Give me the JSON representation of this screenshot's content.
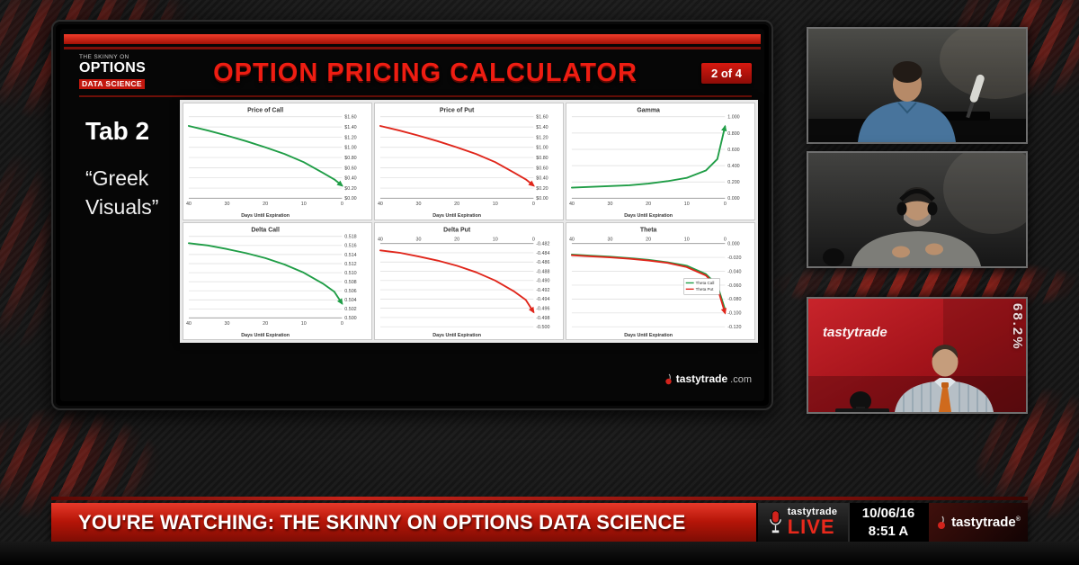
{
  "slide": {
    "logo": {
      "line1": "THE SKINNY ON",
      "line2": "OPTIONS",
      "line3": "DATA SCIENCE"
    },
    "title": "OPTION PRICING CALCULATOR",
    "page_badge": "2 of 4",
    "tab_label": "Tab 2",
    "tab_sublabel": "“Greek\nVisuals”",
    "footer_brand": "tastytrade",
    "footer_brand_suffix": ".com"
  },
  "chart_data": [
    {
      "type": "line",
      "title": "Price of Call",
      "xlabel": "Days Until Expiration",
      "xlim": [
        40,
        0
      ],
      "x_ticks": [
        40,
        30,
        20,
        10,
        0
      ],
      "x_labels_top": false,
      "x": [
        40,
        35,
        30,
        25,
        20,
        15,
        10,
        5,
        2,
        0
      ],
      "series": [
        {
          "name": "Price of Call",
          "color": "#1f9d46",
          "values": [
            1.42,
            1.33,
            1.23,
            1.12,
            1.0,
            0.87,
            0.71,
            0.5,
            0.37,
            0.25
          ]
        }
      ],
      "ylim": [
        0,
        1.6
      ],
      "y_tick_values": [
        1.6,
        1.4,
        1.2,
        1.0,
        0.8,
        0.6,
        0.4,
        0.2,
        0
      ],
      "y_tick_labels": [
        "$1.60",
        "$1.40",
        "$1.20",
        "$1.00",
        "$0.80",
        "$0.60",
        "$0.40",
        "$0.20",
        "$0.00"
      ],
      "arrow": true,
      "grid": true,
      "legend": false
    },
    {
      "type": "line",
      "title": "Price of Put",
      "xlabel": "Days Until Expiration",
      "xlim": [
        40,
        0
      ],
      "x_ticks": [
        40,
        30,
        20,
        10,
        0
      ],
      "x_labels_top": false,
      "x": [
        40,
        35,
        30,
        25,
        20,
        15,
        10,
        5,
        2,
        0
      ],
      "series": [
        {
          "name": "Price of Put",
          "color": "#e0261b",
          "values": [
            1.42,
            1.33,
            1.23,
            1.12,
            1.0,
            0.87,
            0.71,
            0.5,
            0.37,
            0.25
          ]
        }
      ],
      "ylim": [
        0,
        1.6
      ],
      "y_tick_values": [
        1.6,
        1.4,
        1.2,
        1.0,
        0.8,
        0.6,
        0.4,
        0.2,
        0
      ],
      "y_tick_labels": [
        "$1.60",
        "$1.40",
        "$1.20",
        "$1.00",
        "$0.80",
        "$0.60",
        "$0.40",
        "$0.20",
        "$0.00"
      ],
      "arrow": true,
      "grid": true,
      "legend": false
    },
    {
      "type": "line",
      "title": "Gamma",
      "xlabel": "Days Until Expiration",
      "xlim": [
        40,
        0
      ],
      "x_ticks": [
        40,
        30,
        20,
        10,
        0
      ],
      "x_labels_top": false,
      "x": [
        40,
        35,
        30,
        25,
        20,
        15,
        10,
        5,
        2,
        0
      ],
      "series": [
        {
          "name": "Gamma",
          "color": "#1f9d46",
          "values": [
            0.13,
            0.14,
            0.15,
            0.16,
            0.18,
            0.21,
            0.25,
            0.34,
            0.48,
            0.88
          ]
        }
      ],
      "ylim": [
        0,
        1.0
      ],
      "y_tick_values": [
        1.0,
        0.8,
        0.6,
        0.4,
        0.2,
        0
      ],
      "y_tick_labels": [
        "1.000",
        "0.800",
        "0.600",
        "0.400",
        "0.200",
        "0.000"
      ],
      "arrow": true,
      "grid": true,
      "legend": false
    },
    {
      "type": "line",
      "title": "Delta Call",
      "xlabel": "Days Until Expiration",
      "xlim": [
        40,
        0
      ],
      "x_ticks": [
        40,
        30,
        20,
        10,
        0
      ],
      "x_labels_top": false,
      "x": [
        40,
        35,
        30,
        25,
        20,
        15,
        10,
        5,
        2,
        0
      ],
      "series": [
        {
          "name": "Delta Call",
          "color": "#1f9d46",
          "values": [
            0.5165,
            0.516,
            0.5152,
            0.5143,
            0.5132,
            0.5118,
            0.51,
            0.5076,
            0.5058,
            0.5032
          ]
        }
      ],
      "ylim": [
        0.5,
        0.518
      ],
      "y_tick_values": [
        0.518,
        0.516,
        0.514,
        0.512,
        0.51,
        0.508,
        0.506,
        0.504,
        0.502,
        0.5
      ],
      "y_tick_labels": [
        "0.518",
        "0.516",
        "0.514",
        "0.512",
        "0.510",
        "0.508",
        "0.506",
        "0.504",
        "0.502",
        "0.500"
      ],
      "arrow": true,
      "grid": true,
      "legend": false
    },
    {
      "type": "line",
      "title": "Delta Put",
      "xlabel": "Days Until Expiration",
      "xlim": [
        40,
        0
      ],
      "x_ticks": [
        40,
        30,
        20,
        10,
        0
      ],
      "x_labels_top": true,
      "x": [
        40,
        35,
        30,
        25,
        20,
        15,
        10,
        5,
        2,
        0
      ],
      "series": [
        {
          "name": "Delta Put",
          "color": "#e0261b",
          "values": [
            -0.4835,
            -0.484,
            -0.4848,
            -0.4857,
            -0.4868,
            -0.4882,
            -0.49,
            -0.4924,
            -0.4942,
            -0.4968
          ]
        }
      ],
      "ylim": [
        -0.5,
        -0.482
      ],
      "y_tick_values": [
        -0.482,
        -0.484,
        -0.486,
        -0.488,
        -0.49,
        -0.492,
        -0.494,
        -0.496,
        -0.498,
        -0.5
      ],
      "y_tick_labels": [
        "-0.482",
        "-0.484",
        "-0.486",
        "-0.488",
        "-0.490",
        "-0.492",
        "-0.494",
        "-0.496",
        "-0.498",
        "-0.500"
      ],
      "arrow": true,
      "grid": true,
      "legend": false
    },
    {
      "type": "line",
      "title": "Theta",
      "xlabel": "Days Until Expiration",
      "xlim": [
        40,
        0
      ],
      "x_ticks": [
        40,
        30,
        20,
        10,
        0
      ],
      "x_labels_top": true,
      "x": [
        40,
        35,
        30,
        25,
        20,
        15,
        10,
        5,
        2,
        0
      ],
      "series": [
        {
          "name": "Theta Call",
          "color": "#1f9d46",
          "values": [
            -0.016,
            -0.0175,
            -0.019,
            -0.021,
            -0.0235,
            -0.027,
            -0.032,
            -0.044,
            -0.06,
            -0.095
          ]
        },
        {
          "name": "Theta Put",
          "color": "#e0261b",
          "values": [
            -0.017,
            -0.0185,
            -0.02,
            -0.022,
            -0.0245,
            -0.028,
            -0.034,
            -0.046,
            -0.063,
            -0.1
          ]
        }
      ],
      "ylim": [
        -0.12,
        0.0
      ],
      "y_tick_values": [
        0,
        -0.02,
        -0.04,
        -0.06,
        -0.08,
        -0.1,
        -0.12
      ],
      "y_tick_labels": [
        "0.000",
        "-0.020",
        "-0.040",
        "-0.060",
        "-0.080",
        "-0.100",
        "-0.120"
      ],
      "arrow": true,
      "grid": true,
      "legend": true
    }
  ],
  "side_videos": [
    {},
    {},
    {
      "backdrop_text": "tastytrade",
      "overlay_percent": "68.2%"
    }
  ],
  "ticker": {
    "watching_text": "YOU'RE WATCHING: THE SKINNY ON OPTIONS DATA SCIENCE",
    "live_brand": "tastytrade",
    "live_label": "LIVE",
    "date": "10/06/16",
    "time": "8:51 A",
    "brand": "tastytrade",
    "brand_mark": "®"
  }
}
